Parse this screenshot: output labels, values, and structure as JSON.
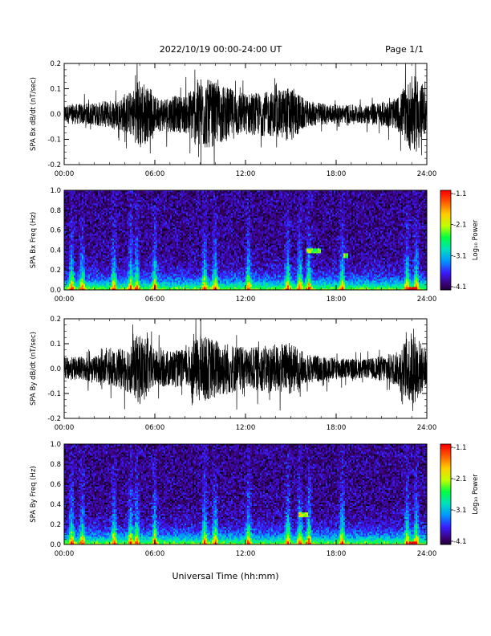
{
  "header": {
    "date_range": "2022/10/19   00:00-24:00  UT",
    "page": "Page 1/1"
  },
  "xlabel": "Universal Time (hh:mm)",
  "colorbar": {
    "label": "Log₁₀ Power",
    "ticks": [
      "-1.1",
      "-2.1",
      "-3.1",
      "-4.1"
    ],
    "range": [
      -4.1,
      -1.1
    ]
  },
  "colors": {
    "colormap": [
      "#000000",
      "#3a0070",
      "#3a1cff",
      "#0096ff",
      "#00e0c0",
      "#00ff40",
      "#c0ff00",
      "#ffd000",
      "#ff6000",
      "#ff0000"
    ]
  },
  "chart_data": [
    {
      "type": "line",
      "title": "",
      "ylabel": "SPA Bx dB/dt (nT/sec)",
      "xlabel": "",
      "xlim": [
        "00:00",
        "24:00"
      ],
      "x_ticks": [
        "00:00",
        "06:00",
        "12:00",
        "18:00",
        "24:00"
      ],
      "ylim": [
        -0.2,
        0.2
      ],
      "y_ticks": [
        "0.2",
        "0.1",
        "0.0",
        "-0.1",
        "-0.2"
      ],
      "envelope": {
        "x": [
          "00:00",
          "02:00",
          "03:30",
          "04:30",
          "05:00",
          "06:00",
          "08:00",
          "09:00",
          "10:30",
          "12:00",
          "14:00",
          "15:00",
          "16:00",
          "18:00",
          "20:00",
          "22:00",
          "23:00",
          "23:30",
          "24:00"
        ],
        "amplitude": [
          0.05,
          0.06,
          0.08,
          0.12,
          0.2,
          0.09,
          0.1,
          0.2,
          0.15,
          0.11,
          0.12,
          0.15,
          0.07,
          0.05,
          0.05,
          0.08,
          0.2,
          0.2,
          0.07
        ]
      }
    },
    {
      "type": "heatmap",
      "title": "",
      "ylabel": "SPA Bx Freq (Hz)",
      "xlabel": "",
      "xlim": [
        "00:00",
        "24:00"
      ],
      "x_ticks": [
        "00:00",
        "06:00",
        "12:00",
        "18:00",
        "24:00"
      ],
      "ylim": [
        0.0,
        1.0
      ],
      "y_ticks": [
        "1.0",
        "0.8",
        "0.6",
        "0.4",
        "0.2",
        "0.0"
      ],
      "zlim": [
        -4.1,
        -1.1
      ],
      "bursts_hours": [
        0.5,
        1.2,
        3.3,
        4.4,
        4.8,
        6.0,
        9.3,
        10.0,
        12.2,
        14.8,
        15.6,
        16.2,
        18.4,
        22.7,
        23.3
      ],
      "features": [
        {
          "label": "narrowband",
          "x": [
            "16:00",
            "17:00"
          ],
          "freq_hz": 0.4
        },
        {
          "label": "narrowband",
          "x": [
            "18:30",
            "18:45"
          ],
          "freq_hz": 0.35
        }
      ]
    },
    {
      "type": "line",
      "title": "",
      "ylabel": "SPA By dB/dt (nT/sec)",
      "xlabel": "",
      "xlim": [
        "00:00",
        "24:00"
      ],
      "x_ticks": [
        "00:00",
        "06:00",
        "12:00",
        "18:00",
        "24:00"
      ],
      "ylim": [
        -0.2,
        0.2
      ],
      "y_ticks": [
        "0.2",
        "0.1",
        "0.0",
        "-0.1",
        "-0.2"
      ],
      "envelope": {
        "x": [
          "00:00",
          "02:00",
          "03:30",
          "04:30",
          "05:00",
          "06:00",
          "08:00",
          "09:00",
          "10:30",
          "12:00",
          "14:00",
          "15:00",
          "16:00",
          "18:00",
          "20:00",
          "22:00",
          "23:00",
          "23:30",
          "24:00"
        ],
        "amplitude": [
          0.06,
          0.07,
          0.1,
          0.14,
          0.2,
          0.1,
          0.1,
          0.18,
          0.15,
          0.11,
          0.13,
          0.14,
          0.08,
          0.06,
          0.05,
          0.09,
          0.2,
          0.16,
          0.08
        ]
      }
    },
    {
      "type": "heatmap",
      "title": "",
      "ylabel": "SPA By Freq (Hz)",
      "xlabel": "Universal Time (hh:mm)",
      "xlim": [
        "00:00",
        "24:00"
      ],
      "x_ticks": [
        "00:00",
        "06:00",
        "12:00",
        "18:00",
        "24:00"
      ],
      "ylim": [
        0.0,
        1.0
      ],
      "y_ticks": [
        "1.0",
        "0.8",
        "0.6",
        "0.4",
        "0.2",
        "0.0"
      ],
      "zlim": [
        -4.1,
        -1.1
      ],
      "bursts_hours": [
        0.5,
        1.2,
        3.3,
        4.4,
        4.8,
        6.0,
        9.3,
        10.0,
        12.2,
        14.8,
        15.6,
        16.2,
        18.4,
        22.7,
        23.3
      ],
      "features": [
        {
          "label": "narrowband",
          "x": [
            "15:30",
            "16:10"
          ],
          "freq_hz": 0.3
        }
      ]
    }
  ]
}
